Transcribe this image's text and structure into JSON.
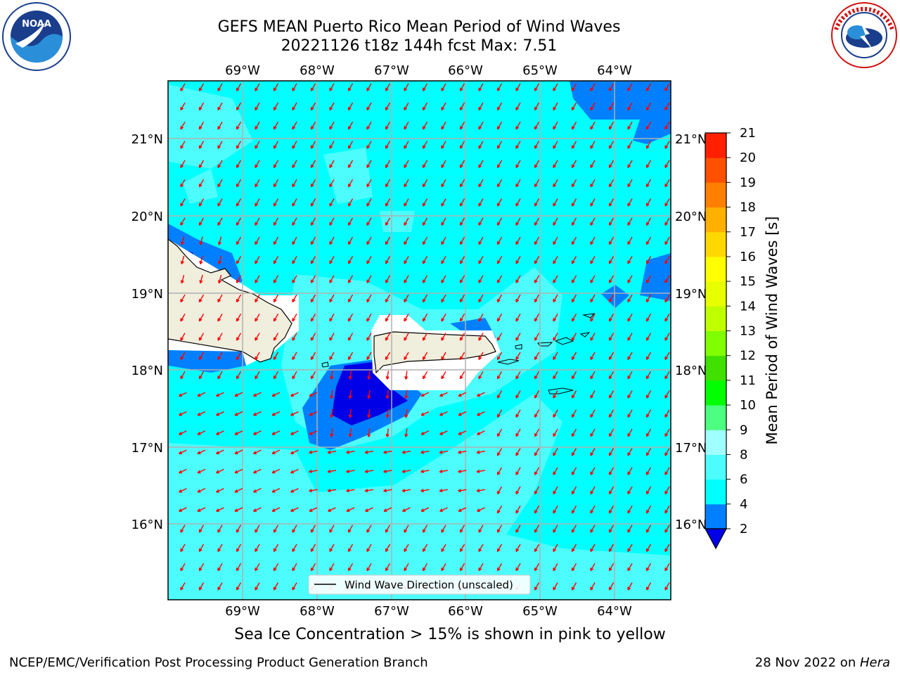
{
  "header": {
    "title_line1": "GEFS MEAN Puerto Rico Mean Period of Wind Waves",
    "title_line2": "20221126 t18z 144h fcst   Max: 7.51"
  },
  "logos": {
    "left": "noaa-logo",
    "right": "national-weather-service-logo"
  },
  "map": {
    "lon_labels": [
      "69°W",
      "68°W",
      "67°W",
      "66°W",
      "65°W",
      "64°W"
    ],
    "lat_labels": [
      "21°N",
      "20°N",
      "19°N",
      "18°N",
      "17°N",
      "16°N"
    ],
    "legend_label": "Wind Wave Direction (unscaled)",
    "colors": {
      "ocean_main": "#00ffff",
      "ocean_light": "#4dfdfd",
      "band_2_4": "#0080ff",
      "band_below_2": "#0000e6",
      "land": "#f0eedc",
      "arrow": "#ff0000",
      "grid": "#b0b0b0"
    }
  },
  "colorbar": {
    "label": "Mean Period of Wind Waves [s]",
    "ticks": [
      "2",
      "4",
      "6",
      "8",
      "9",
      "10",
      "11",
      "12",
      "13",
      "14",
      "15",
      "16",
      "17",
      "18",
      "19",
      "20",
      "21"
    ],
    "colors": [
      "#0080ff",
      "#00ffff",
      "#4dfdfd",
      "#a0ffff",
      "#4dff80",
      "#00ff00",
      "#40e000",
      "#80ff00",
      "#c0ff00",
      "#e8ff00",
      "#ffff00",
      "#ffd800",
      "#ffb000",
      "#ff8000",
      "#ff5000",
      "#ff2000"
    ],
    "extend_color": "#0000e6"
  },
  "footer": {
    "caption": "Sea Ice Concentration > 15% is shown in pink to yellow",
    "left": "NCEP/EMC/Verification Post Processing Product Generation Branch",
    "right_prefix": "28 Nov 2022 on ",
    "right_host": "Hera"
  }
}
